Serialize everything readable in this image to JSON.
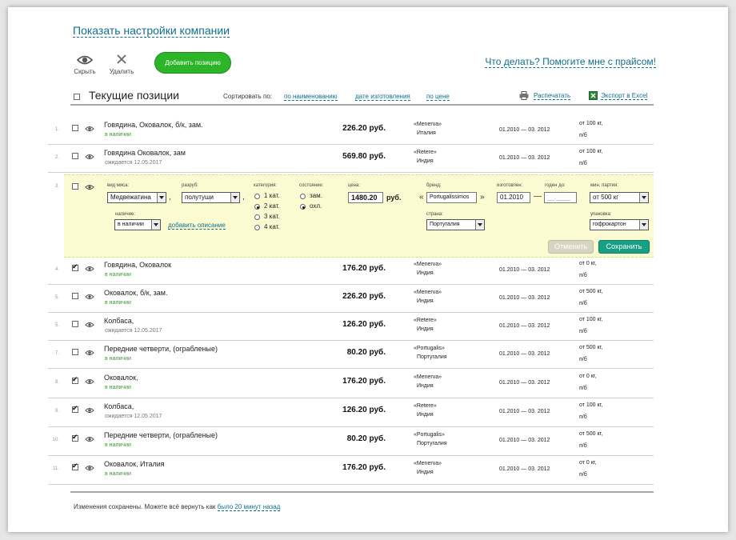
{
  "top_link": "Показать настройки компании",
  "toolbar": {
    "hide_label": "Скрыть",
    "delete_label": "Удалить",
    "add_label": "Добавить позицию"
  },
  "help_link": "Что делать? Помогите мне с прайсом!",
  "header": {
    "title": "Текущие позиции",
    "sort_label": "Сортировать по:",
    "sort_by_name": "по наименованию",
    "sort_by_date": "дате изготовления",
    "sort_by_price": "по цене",
    "print": "Распечатать",
    "export": "Экспорт в Excel"
  },
  "rows": [
    {
      "num": "1.",
      "checked": false,
      "name": "Говядина, Оковалок, б/к, зам.",
      "status": "в наличии",
      "status_type": "green",
      "price": "226.20 руб.",
      "brand": "«Menerva»",
      "country": "Италия",
      "dates": "01.2010 — 03. 2012",
      "min_qty": "от 100 кг,",
      "pack": "п/б"
    },
    {
      "num": "2.",
      "checked": false,
      "name": "Говядина Оковалок, зам",
      "status": "ожидается 12.05.2017",
      "status_type": "gray",
      "price": "569.80 руб.",
      "brand": "«Retere»",
      "country": "Индия",
      "dates": "01.2010 — 03. 2012",
      "min_qty": "от 100 кг,",
      "pack": "п/б"
    },
    {
      "num": "4.",
      "checked": true,
      "name": "Говядина, Оковалок",
      "status": "в наличии",
      "status_type": "green",
      "price": "176.20 руб.",
      "brand": "«Menerva»",
      "country": "Индия",
      "dates": "01.2010 — 03. 2012",
      "min_qty": "от 0 кг,",
      "pack": "п/б"
    },
    {
      "num": "5.",
      "checked": false,
      "name": "Оковалок, б/к, зам.",
      "status": "в наличии",
      "status_type": "green",
      "price": "226.20 руб.",
      "brand": "«Menerva»",
      "country": "Индия",
      "dates": "01.2010 — 03. 2012",
      "min_qty": "от 500 кг,",
      "pack": "п/б"
    },
    {
      "num": "5.",
      "checked": false,
      "name": "Колбаса,",
      "status": "ожидается 12.05.2017",
      "status_type": "gray",
      "price": "126.20 руб.",
      "brand": "«Retere»",
      "country": "Индия",
      "dates": "01.2010 — 03. 2012",
      "min_qty": "от 100 кг,",
      "pack": "п/б"
    },
    {
      "num": "7.",
      "checked": false,
      "name": "Передние четверти, (ограбленые)",
      "status": "в наличии",
      "status_type": "green",
      "price": "80.20 руб.",
      "brand": "«Portugalis»",
      "country": "Португалия",
      "dates": "01.2010 — 03. 2012",
      "min_qty": "от 500 кг,",
      "pack": "п/б"
    },
    {
      "num": "8.",
      "checked": true,
      "name": "Оковалок,",
      "status": "в наличии",
      "status_type": "green",
      "price": "176.20 руб.",
      "brand": "«Menerva»",
      "country": "Индия",
      "dates": "01.2010 — 03. 2012",
      "min_qty": "от 0 кг,",
      "pack": "п/б"
    },
    {
      "num": "9.",
      "checked": true,
      "name": "Колбаса,",
      "status": "ожидается 12.05.2017",
      "status_type": "gray",
      "price": "126.20 руб.",
      "brand": "«Retere»",
      "country": "Индия",
      "dates": "01.2010 — 03. 2012",
      "min_qty": "от 100 кг,",
      "pack": "п/б"
    },
    {
      "num": "10.",
      "checked": true,
      "name": "Передние четверти, (ограбленые)",
      "status": "в наличии",
      "status_type": "green",
      "price": "80.20 руб.",
      "brand": "«Portugalis»",
      "country": "Португалия",
      "dates": "01.2010 — 03. 2012",
      "min_qty": "от 500 кг,",
      "pack": "п/б"
    },
    {
      "num": "11.",
      "checked": true,
      "name": "Оковалок, Италия",
      "status": "в наличии",
      "status_type": "green",
      "price": "176.20 руб.",
      "brand": "«Menerva»",
      "country": "Индия",
      "dates": "01.2010 — 03. 2012",
      "min_qty": "от 0 кг,",
      "pack": "п/б"
    }
  ],
  "edit_row": {
    "num": "3.",
    "meat_type_label": "вид мяса:",
    "meat_type_value": "Медвежатина",
    "cut_label": "разруб:",
    "cut_value": "полутуши",
    "category_label": "категория:",
    "category_options": [
      "1 кат.",
      "2 кат.",
      "3 кат.",
      "4 кат."
    ],
    "category_selected": 1,
    "state_label": "состояние:",
    "state_options": [
      "зам.",
      "охл."
    ],
    "state_selected": 1,
    "price_label": "цена:",
    "price_value": "1480.20",
    "price_unit": "руб.",
    "brand_label": "бренд:",
    "brand_value": "Portugalissimos",
    "made_label": "изготовлен:",
    "made_value": "01.2010",
    "valid_label": "годен до:",
    "valid_value": "__.____",
    "min_label": "мин. партия:",
    "min_value": "от 500 кг",
    "availability_label": "наличие:",
    "availability_value": "в наличии",
    "add_description": "добавить описание",
    "country_label": "страна:",
    "country_value": "Португалия",
    "pack_label": "упаковка:",
    "pack_value": "гофрокартон",
    "cancel_label": "Отменить",
    "save_label": "Сохранить"
  },
  "footer": {
    "text": "Изменения сохранены.  Можете всё вернуть как ",
    "link": "было 20 минут назад"
  },
  "colors": {
    "link": "#0e6f8e",
    "accent_green": "#2db52a",
    "save_teal": "#17a084",
    "edit_bg": "#fbfbd2",
    "status_green": "#3a9a2f"
  }
}
